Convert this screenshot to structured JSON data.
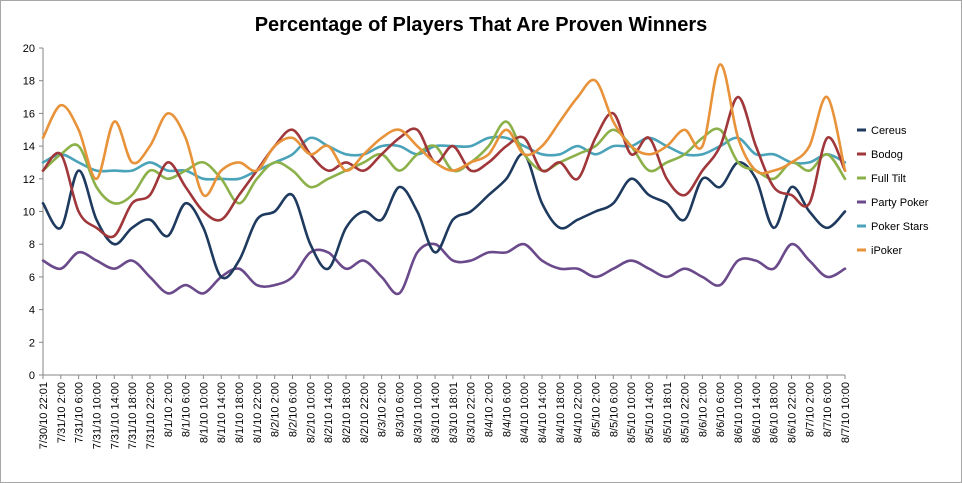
{
  "chart_data": {
    "type": "line",
    "title": "Percentage of Players That Are Proven Winners",
    "xlabel": "",
    "ylabel": "",
    "ylim": [
      0,
      20
    ],
    "y_ticks": [
      "0",
      "2",
      "4",
      "6",
      "8",
      "10",
      "12",
      "14",
      "16",
      "18",
      "20"
    ],
    "grid": false,
    "legend_position": "right",
    "categories": [
      "7/30/10 22:01",
      "7/31/10 2:00",
      "7/31/10 6:00",
      "7/31/10 10:00",
      "7/31/10 14:00",
      "7/31/10 18:00",
      "7/31/10 22:00",
      "8/1/10 2:00",
      "8/1/10 6:00",
      "8/1/10 10:00",
      "8/1/10 14:00",
      "8/1/10 18:00",
      "8/1/10 22:00",
      "8/2/10 2:00",
      "8/2/10 6:00",
      "8/2/10 10:00",
      "8/2/10 14:00",
      "8/2/10 18:00",
      "8/2/10 22:00",
      "8/3/10 2:00",
      "8/3/10 6:00",
      "8/3/10 10:00",
      "8/3/10 14:00",
      "8/3/10 18:01",
      "8/3/10 22:00",
      "8/4/10 2:00",
      "8/4/10 6:00",
      "8/4/10 10:00",
      "8/4/10 14:00",
      "8/4/10 18:00",
      "8/4/10 22:00",
      "8/5/10 2:00",
      "8/5/10 6:00",
      "8/5/10 10:00",
      "8/5/10 14:00",
      "8/5/10 18:01",
      "8/5/10 22:00",
      "8/6/10 2:00",
      "8/6/10 6:00",
      "8/6/10 10:00",
      "8/6/10 14:00",
      "8/6/10 18:00",
      "8/6/10 22:00",
      "8/7/10 2:00",
      "8/7/10 6:00",
      "8/7/10 10:00"
    ],
    "series": [
      {
        "name": "Cereus",
        "color": "#1f3a5f",
        "values": [
          10.5,
          9.0,
          12.5,
          9.5,
          8.0,
          9.0,
          9.5,
          8.5,
          10.5,
          9.0,
          6.0,
          7.0,
          9.5,
          10.0,
          11.0,
          8.0,
          6.5,
          9.0,
          10.0,
          9.5,
          11.5,
          10.0,
          7.5,
          9.5,
          10.0,
          11.0,
          12.0,
          13.5,
          10.5,
          9.0,
          9.5,
          10.0,
          10.5,
          12.0,
          11.0,
          10.5,
          9.5,
          12.0,
          11.5,
          13.0,
          12.0,
          9.0,
          11.5,
          10.0,
          9.0,
          10.0
        ]
      },
      {
        "name": "Bodog",
        "color": "#a0373a",
        "values": [
          12.5,
          13.5,
          10.0,
          9.0,
          8.5,
          10.5,
          11.0,
          13.0,
          11.5,
          10.0,
          9.5,
          11.0,
          12.5,
          14.0,
          15.0,
          13.5,
          12.5,
          13.0,
          12.5,
          13.5,
          14.5,
          15.0,
          13.0,
          14.0,
          12.5,
          13.0,
          14.0,
          14.5,
          12.5,
          13.0,
          12.0,
          14.5,
          16.0,
          13.5,
          14.5,
          12.0,
          11.0,
          12.5,
          14.0,
          17.0,
          14.0,
          11.5,
          11.0,
          10.5,
          14.5,
          12.5
        ]
      },
      {
        "name": "Full Tilt",
        "color": "#8db14a",
        "values": [
          12.5,
          13.5,
          14.0,
          11.5,
          10.5,
          11.0,
          12.5,
          12.0,
          12.5,
          13.0,
          12.0,
          10.5,
          12.0,
          13.0,
          12.5,
          11.5,
          12.0,
          12.5,
          13.0,
          13.5,
          12.5,
          13.5,
          14.0,
          12.5,
          13.0,
          14.0,
          15.5,
          13.5,
          12.5,
          13.0,
          13.5,
          14.0,
          15.0,
          14.0,
          12.5,
          13.0,
          13.5,
          14.5,
          15.0,
          13.0,
          12.5,
          12.0,
          13.0,
          12.5,
          13.5,
          12.0
        ]
      },
      {
        "name": "Party Poker",
        "color": "#6b4a8c",
        "values": [
          7.0,
          6.5,
          7.5,
          7.0,
          6.5,
          7.0,
          6.0,
          5.0,
          5.5,
          5.0,
          6.0,
          6.5,
          5.5,
          5.5,
          6.0,
          7.5,
          7.5,
          6.5,
          7.0,
          6.0,
          5.0,
          7.5,
          8.0,
          7.0,
          7.0,
          7.5,
          7.5,
          8.0,
          7.0,
          6.5,
          6.5,
          6.0,
          6.5,
          7.0,
          6.5,
          6.0,
          6.5,
          6.0,
          5.5,
          7.0,
          7.0,
          6.5,
          8.0,
          7.0,
          6.0,
          6.5
        ]
      },
      {
        "name": "Poker Stars",
        "color": "#4aa3b8",
        "values": [
          13.0,
          13.5,
          13.0,
          12.5,
          12.5,
          12.5,
          13.0,
          12.5,
          12.5,
          12.0,
          12.0,
          12.0,
          12.5,
          13.0,
          13.5,
          14.5,
          14.0,
          13.5,
          13.5,
          14.0,
          14.0,
          13.5,
          14.0,
          14.0,
          14.0,
          14.5,
          14.5,
          14.0,
          13.5,
          13.5,
          14.0,
          13.5,
          14.0,
          14.0,
          14.5,
          14.0,
          13.5,
          13.5,
          14.0,
          14.5,
          13.5,
          13.5,
          13.0,
          13.0,
          13.5,
          13.0
        ]
      },
      {
        "name": "iPoker",
        "color": "#e8923a",
        "values": [
          14.5,
          16.5,
          15.0,
          12.0,
          15.5,
          13.0,
          14.0,
          16.0,
          14.5,
          11.0,
          12.5,
          13.0,
          12.5,
          14.0,
          14.5,
          13.5,
          14.0,
          12.5,
          13.5,
          14.5,
          15.0,
          14.0,
          13.0,
          12.5,
          13.0,
          13.5,
          15.0,
          13.5,
          14.0,
          15.5,
          17.0,
          18.0,
          15.5,
          14.0,
          13.5,
          14.0,
          15.0,
          14.0,
          19.0,
          14.5,
          12.5,
          12.5,
          13.0,
          14.0,
          17.0,
          12.5
        ]
      }
    ]
  }
}
